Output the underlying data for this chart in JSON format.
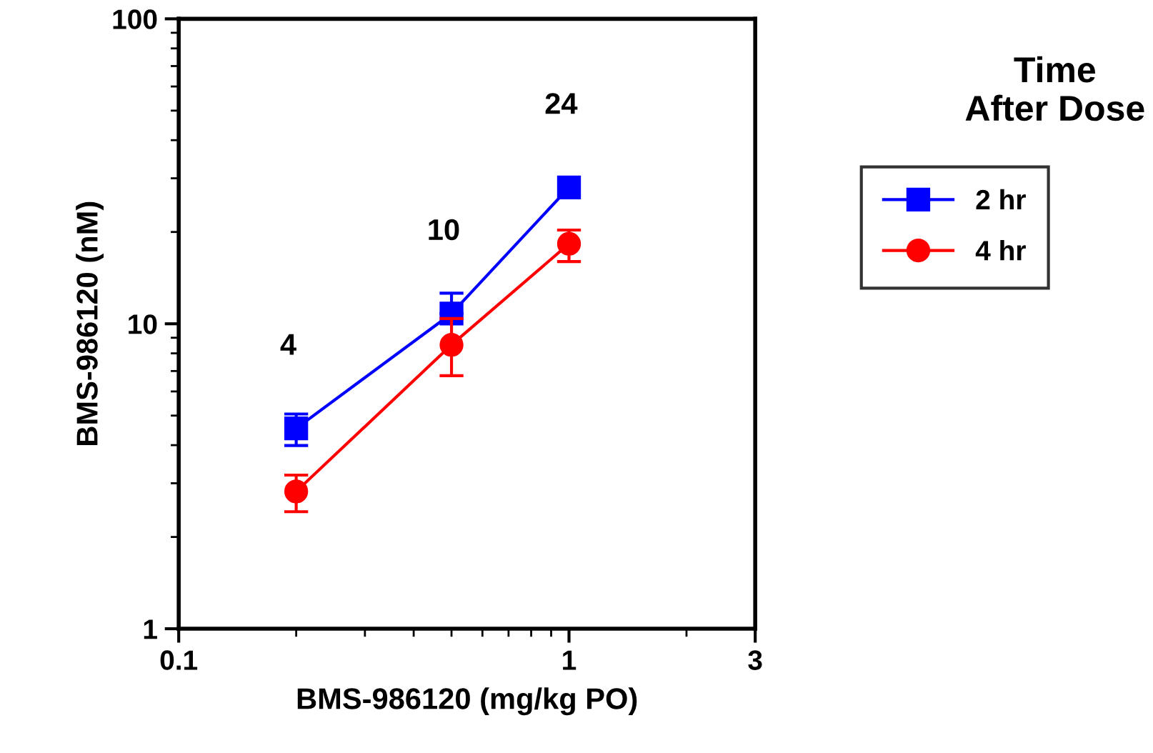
{
  "chart_data": {
    "type": "line",
    "xlabel": "BMS-986120 (mg/kg PO)",
    "ylabel": "BMS-986120 (nM)",
    "legend_title": "Time\nAfter Dose",
    "log": "xy",
    "xlim": [
      0.1,
      3
    ],
    "xticks": [
      0.1,
      1,
      3
    ],
    "ylim": [
      1,
      100
    ],
    "yticks": [
      1,
      10,
      100
    ],
    "grid": false,
    "legend": "right",
    "line_style": "solid",
    "x": [
      0.2,
      0.5,
      1
    ],
    "series": [
      {
        "name": "2 hr",
        "color": "#0000ff",
        "marker": "square",
        "values": [
          4.54,
          10.8,
          28.0
        ],
        "errors": [
          [
            3.99,
            5.06
          ],
          [
            10.8,
            12.6
          ],
          null
        ]
      },
      {
        "name": "4 hr",
        "color": "#ff0000",
        "marker": "circle",
        "values": [
          2.82,
          8.53,
          18.3
        ],
        "errors": [
          [
            2.42,
            3.19
          ],
          [
            6.76,
            10.4
          ],
          [
            16.0,
            20.3
          ]
        ]
      }
    ],
    "annotations": [
      "4",
      "10",
      "24"
    ]
  }
}
